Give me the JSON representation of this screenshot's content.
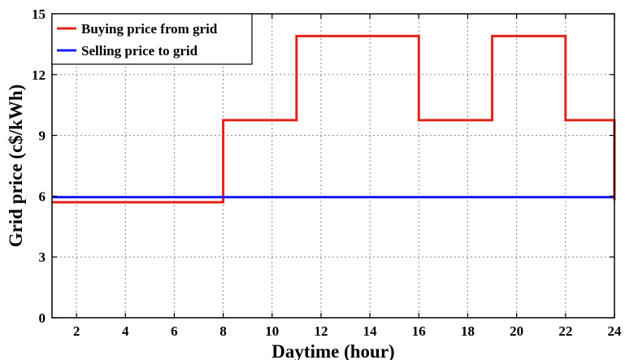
{
  "chart_data": {
    "type": "line",
    "xlabel": "Daytime (hour)",
    "ylabel": "Grid price (c$/kWh)",
    "xlim": [
      1,
      24
    ],
    "ylim": [
      0,
      15
    ],
    "xticks": [
      "2",
      "4",
      "6",
      "8",
      "10",
      "12",
      "14",
      "16",
      "18",
      "20",
      "22",
      "24"
    ],
    "yticks": [
      "0",
      "3",
      "6",
      "9",
      "12",
      "15"
    ],
    "grid": true,
    "legend_position": "top-left",
    "step": true,
    "series": [
      {
        "name": "Buying price from grid",
        "color": "#e2231a",
        "x": [
          1,
          8,
          11,
          16,
          19,
          22,
          24
        ],
        "y": [
          5.7,
          9.75,
          13.9,
          9.75,
          13.9,
          9.75,
          5.8
        ]
      },
      {
        "name": "Selling price to grid",
        "color": "#1a1aff",
        "x": [
          1,
          24
        ],
        "y": [
          5.95,
          5.95
        ]
      }
    ]
  }
}
